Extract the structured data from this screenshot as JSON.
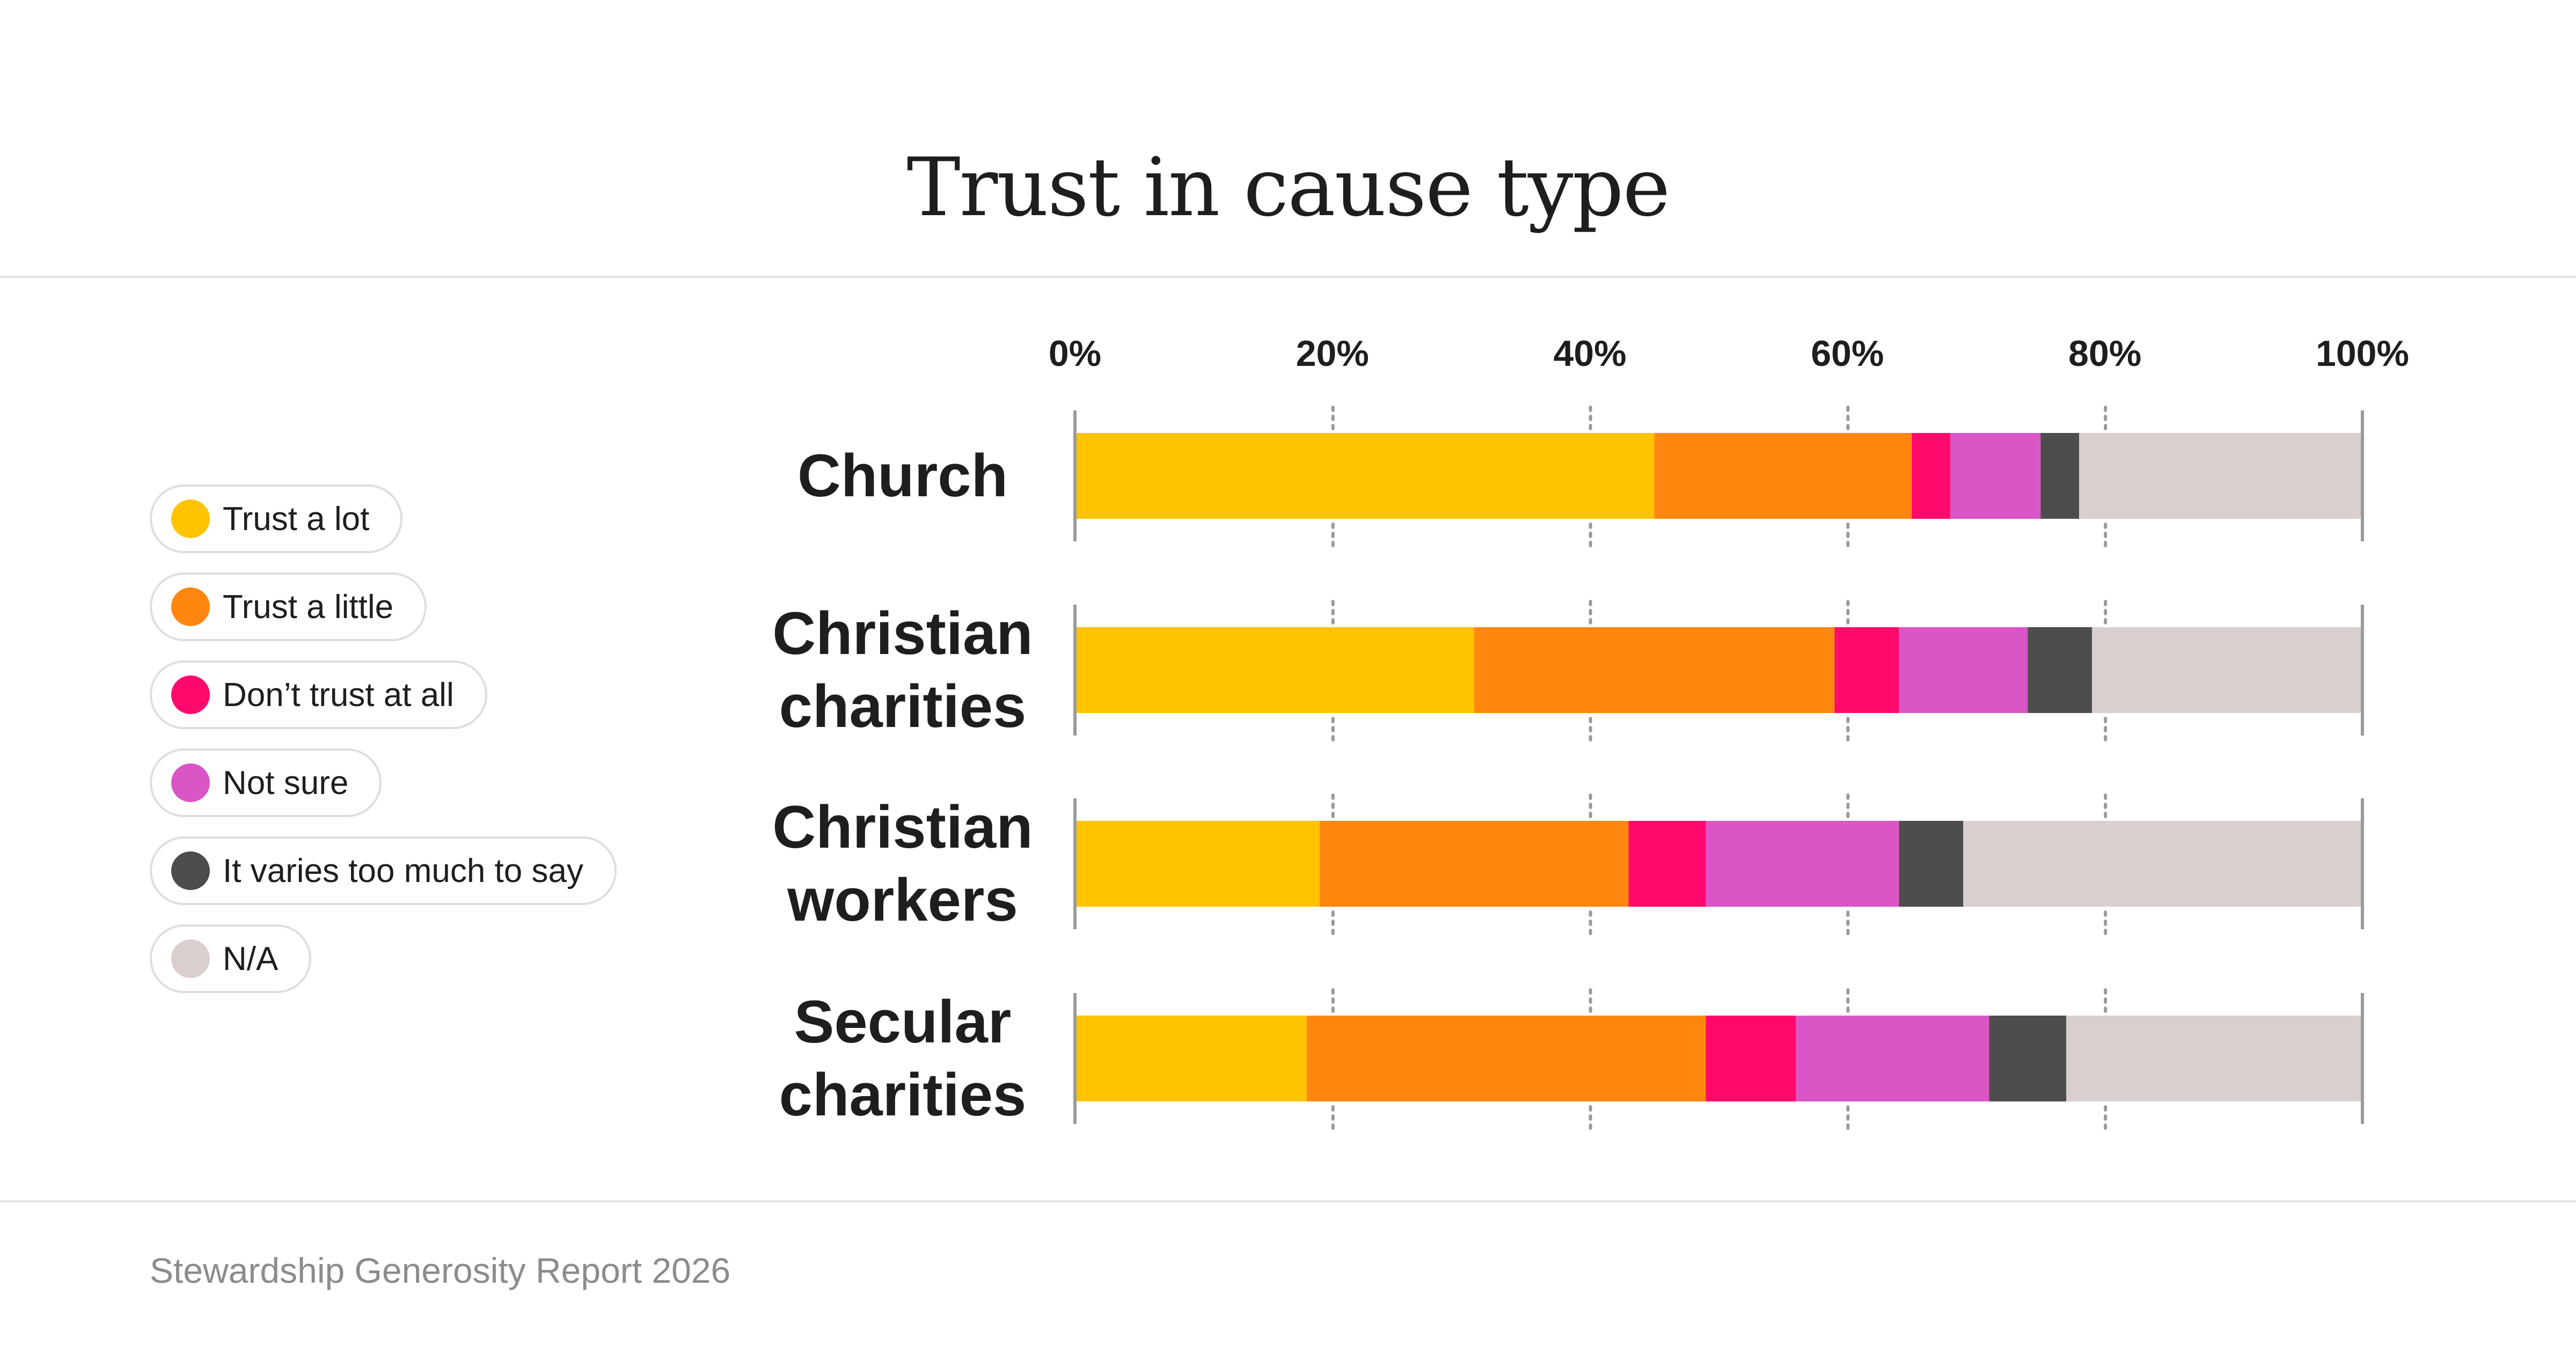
{
  "footer": "Stewardship Generosity Report 2026",
  "chart_data": {
    "type": "bar",
    "orientation": "horizontal",
    "stacked": true,
    "title": "Trust in cause type",
    "xlabel": "",
    "ylabel": "",
    "xlim": [
      0,
      100
    ],
    "xticks": [
      "0%",
      "20%",
      "40%",
      "60%",
      "80%",
      "100%"
    ],
    "grid": "dotted vertical",
    "legend_position": "left",
    "categories": [
      {
        "label_lines": [
          "Church"
        ]
      },
      {
        "label_lines": [
          "Christian",
          "charities"
        ]
      },
      {
        "label_lines": [
          "Christian",
          "workers"
        ]
      },
      {
        "label_lines": [
          "Secular",
          "charities"
        ]
      }
    ],
    "series": [
      {
        "name": "Trust a lot",
        "color": "#FFC400",
        "values": [
          45,
          31,
          19,
          18
        ]
      },
      {
        "name": "Trust a little",
        "color": "#FF870F",
        "values": [
          20,
          28,
          24,
          31
        ]
      },
      {
        "name": "Don’t trust at all",
        "color": "#FF0A6C",
        "values": [
          3,
          5,
          6,
          7
        ]
      },
      {
        "name": "Not sure",
        "color": "#DA55C6",
        "values": [
          7,
          10,
          15,
          15
        ]
      },
      {
        "name": "It varies too much to say",
        "color": "#4F4D4B",
        "values": [
          3,
          5,
          5,
          6
        ]
      },
      {
        "name": "N/A",
        "color": "#D9CFCE",
        "values": [
          22,
          21,
          31,
          23
        ]
      }
    ]
  }
}
